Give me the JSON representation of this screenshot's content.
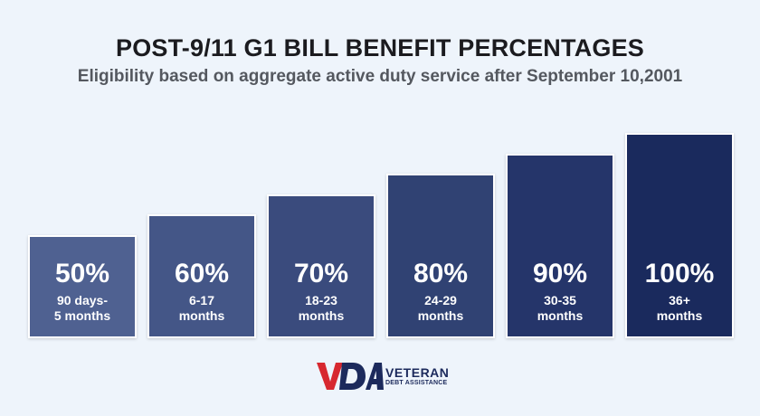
{
  "chart_data": {
    "type": "bar",
    "title": "POST-9/11 G1 BILL BENEFIT PERCENTAGES",
    "subtitle": "Eligibility based on aggregate active duty service after September 10,2001",
    "categories": [
      "90 days-\n5 months",
      "6-17\nmonths",
      "18-23\nmonths",
      "24-29\nmonths",
      "30-35\nmonths",
      "36+\nmonths"
    ],
    "values": [
      50,
      60,
      70,
      80,
      90,
      100
    ],
    "value_labels": [
      "50%",
      "60%",
      "70%",
      "80%",
      "90%",
      "100%"
    ],
    "colors": [
      "#4f6191",
      "#445687",
      "#3a4b7d",
      "#304273",
      "#25356a",
      "#1a2a5d"
    ],
    "grid": false,
    "legend": "none"
  },
  "logo": {
    "mark": "VDA",
    "line1": "VETERAN",
    "line2": "DEBT ASSISTANCE",
    "colors": {
      "red": "#d7282f",
      "blue": "#1c2a5c"
    }
  }
}
